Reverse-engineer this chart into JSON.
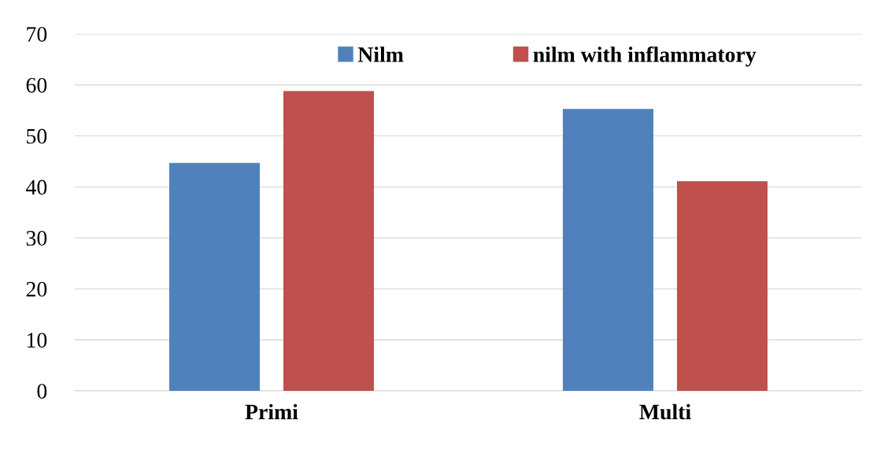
{
  "chart_data": {
    "type": "bar",
    "categories": [
      "Primi",
      "Multi"
    ],
    "series": [
      {
        "name": "Nilm",
        "color": "#4f81bd",
        "values": [
          44.7,
          55.3
        ]
      },
      {
        "name": "nilm with inflammatory",
        "color": "#c0504d",
        "values": [
          58.8,
          41.1
        ]
      }
    ],
    "ylim": [
      0,
      70
    ],
    "yticks": [
      0,
      10,
      20,
      30,
      40,
      50,
      60,
      70
    ],
    "grid": "y",
    "legend": "top"
  }
}
